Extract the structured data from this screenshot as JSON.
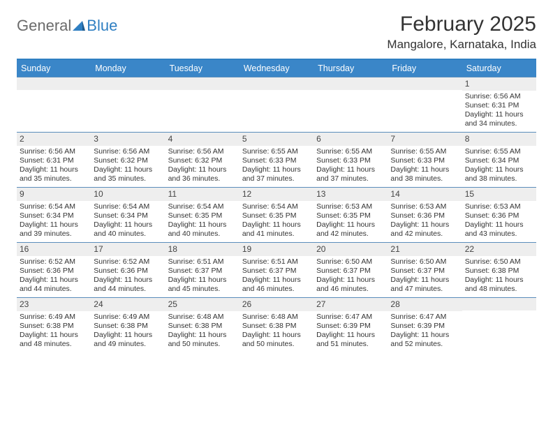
{
  "logo": {
    "general": "General",
    "blue": "Blue"
  },
  "title": "February 2025",
  "location": "Mangalore, Karnataka, India",
  "colors": {
    "header_bar": "#3a86c8",
    "border_top": "#2f7fc2",
    "row_divider": "#5a8dbb",
    "daynum_bg": "#eeeeee",
    "text": "#333333",
    "logo_gray": "#6b6b6b",
    "logo_blue": "#2f7fc2"
  },
  "day_headers": [
    "Sunday",
    "Monday",
    "Tuesday",
    "Wednesday",
    "Thursday",
    "Friday",
    "Saturday"
  ],
  "weeks": [
    [
      null,
      null,
      null,
      null,
      null,
      null,
      {
        "n": "1",
        "sunrise": "Sunrise: 6:56 AM",
        "sunset": "Sunset: 6:31 PM",
        "daylight": "Daylight: 11 hours and 34 minutes."
      }
    ],
    [
      {
        "n": "2",
        "sunrise": "Sunrise: 6:56 AM",
        "sunset": "Sunset: 6:31 PM",
        "daylight": "Daylight: 11 hours and 35 minutes."
      },
      {
        "n": "3",
        "sunrise": "Sunrise: 6:56 AM",
        "sunset": "Sunset: 6:32 PM",
        "daylight": "Daylight: 11 hours and 35 minutes."
      },
      {
        "n": "4",
        "sunrise": "Sunrise: 6:56 AM",
        "sunset": "Sunset: 6:32 PM",
        "daylight": "Daylight: 11 hours and 36 minutes."
      },
      {
        "n": "5",
        "sunrise": "Sunrise: 6:55 AM",
        "sunset": "Sunset: 6:33 PM",
        "daylight": "Daylight: 11 hours and 37 minutes."
      },
      {
        "n": "6",
        "sunrise": "Sunrise: 6:55 AM",
        "sunset": "Sunset: 6:33 PM",
        "daylight": "Daylight: 11 hours and 37 minutes."
      },
      {
        "n": "7",
        "sunrise": "Sunrise: 6:55 AM",
        "sunset": "Sunset: 6:33 PM",
        "daylight": "Daylight: 11 hours and 38 minutes."
      },
      {
        "n": "8",
        "sunrise": "Sunrise: 6:55 AM",
        "sunset": "Sunset: 6:34 PM",
        "daylight": "Daylight: 11 hours and 38 minutes."
      }
    ],
    [
      {
        "n": "9",
        "sunrise": "Sunrise: 6:54 AM",
        "sunset": "Sunset: 6:34 PM",
        "daylight": "Daylight: 11 hours and 39 minutes."
      },
      {
        "n": "10",
        "sunrise": "Sunrise: 6:54 AM",
        "sunset": "Sunset: 6:34 PM",
        "daylight": "Daylight: 11 hours and 40 minutes."
      },
      {
        "n": "11",
        "sunrise": "Sunrise: 6:54 AM",
        "sunset": "Sunset: 6:35 PM",
        "daylight": "Daylight: 11 hours and 40 minutes."
      },
      {
        "n": "12",
        "sunrise": "Sunrise: 6:54 AM",
        "sunset": "Sunset: 6:35 PM",
        "daylight": "Daylight: 11 hours and 41 minutes."
      },
      {
        "n": "13",
        "sunrise": "Sunrise: 6:53 AM",
        "sunset": "Sunset: 6:35 PM",
        "daylight": "Daylight: 11 hours and 42 minutes."
      },
      {
        "n": "14",
        "sunrise": "Sunrise: 6:53 AM",
        "sunset": "Sunset: 6:36 PM",
        "daylight": "Daylight: 11 hours and 42 minutes."
      },
      {
        "n": "15",
        "sunrise": "Sunrise: 6:53 AM",
        "sunset": "Sunset: 6:36 PM",
        "daylight": "Daylight: 11 hours and 43 minutes."
      }
    ],
    [
      {
        "n": "16",
        "sunrise": "Sunrise: 6:52 AM",
        "sunset": "Sunset: 6:36 PM",
        "daylight": "Daylight: 11 hours and 44 minutes."
      },
      {
        "n": "17",
        "sunrise": "Sunrise: 6:52 AM",
        "sunset": "Sunset: 6:36 PM",
        "daylight": "Daylight: 11 hours and 44 minutes."
      },
      {
        "n": "18",
        "sunrise": "Sunrise: 6:51 AM",
        "sunset": "Sunset: 6:37 PM",
        "daylight": "Daylight: 11 hours and 45 minutes."
      },
      {
        "n": "19",
        "sunrise": "Sunrise: 6:51 AM",
        "sunset": "Sunset: 6:37 PM",
        "daylight": "Daylight: 11 hours and 46 minutes."
      },
      {
        "n": "20",
        "sunrise": "Sunrise: 6:50 AM",
        "sunset": "Sunset: 6:37 PM",
        "daylight": "Daylight: 11 hours and 46 minutes."
      },
      {
        "n": "21",
        "sunrise": "Sunrise: 6:50 AM",
        "sunset": "Sunset: 6:37 PM",
        "daylight": "Daylight: 11 hours and 47 minutes."
      },
      {
        "n": "22",
        "sunrise": "Sunrise: 6:50 AM",
        "sunset": "Sunset: 6:38 PM",
        "daylight": "Daylight: 11 hours and 48 minutes."
      }
    ],
    [
      {
        "n": "23",
        "sunrise": "Sunrise: 6:49 AM",
        "sunset": "Sunset: 6:38 PM",
        "daylight": "Daylight: 11 hours and 48 minutes."
      },
      {
        "n": "24",
        "sunrise": "Sunrise: 6:49 AM",
        "sunset": "Sunset: 6:38 PM",
        "daylight": "Daylight: 11 hours and 49 minutes."
      },
      {
        "n": "25",
        "sunrise": "Sunrise: 6:48 AM",
        "sunset": "Sunset: 6:38 PM",
        "daylight": "Daylight: 11 hours and 50 minutes."
      },
      {
        "n": "26",
        "sunrise": "Sunrise: 6:48 AM",
        "sunset": "Sunset: 6:38 PM",
        "daylight": "Daylight: 11 hours and 50 minutes."
      },
      {
        "n": "27",
        "sunrise": "Sunrise: 6:47 AM",
        "sunset": "Sunset: 6:39 PM",
        "daylight": "Daylight: 11 hours and 51 minutes."
      },
      {
        "n": "28",
        "sunrise": "Sunrise: 6:47 AM",
        "sunset": "Sunset: 6:39 PM",
        "daylight": "Daylight: 11 hours and 52 minutes."
      },
      null
    ]
  ]
}
